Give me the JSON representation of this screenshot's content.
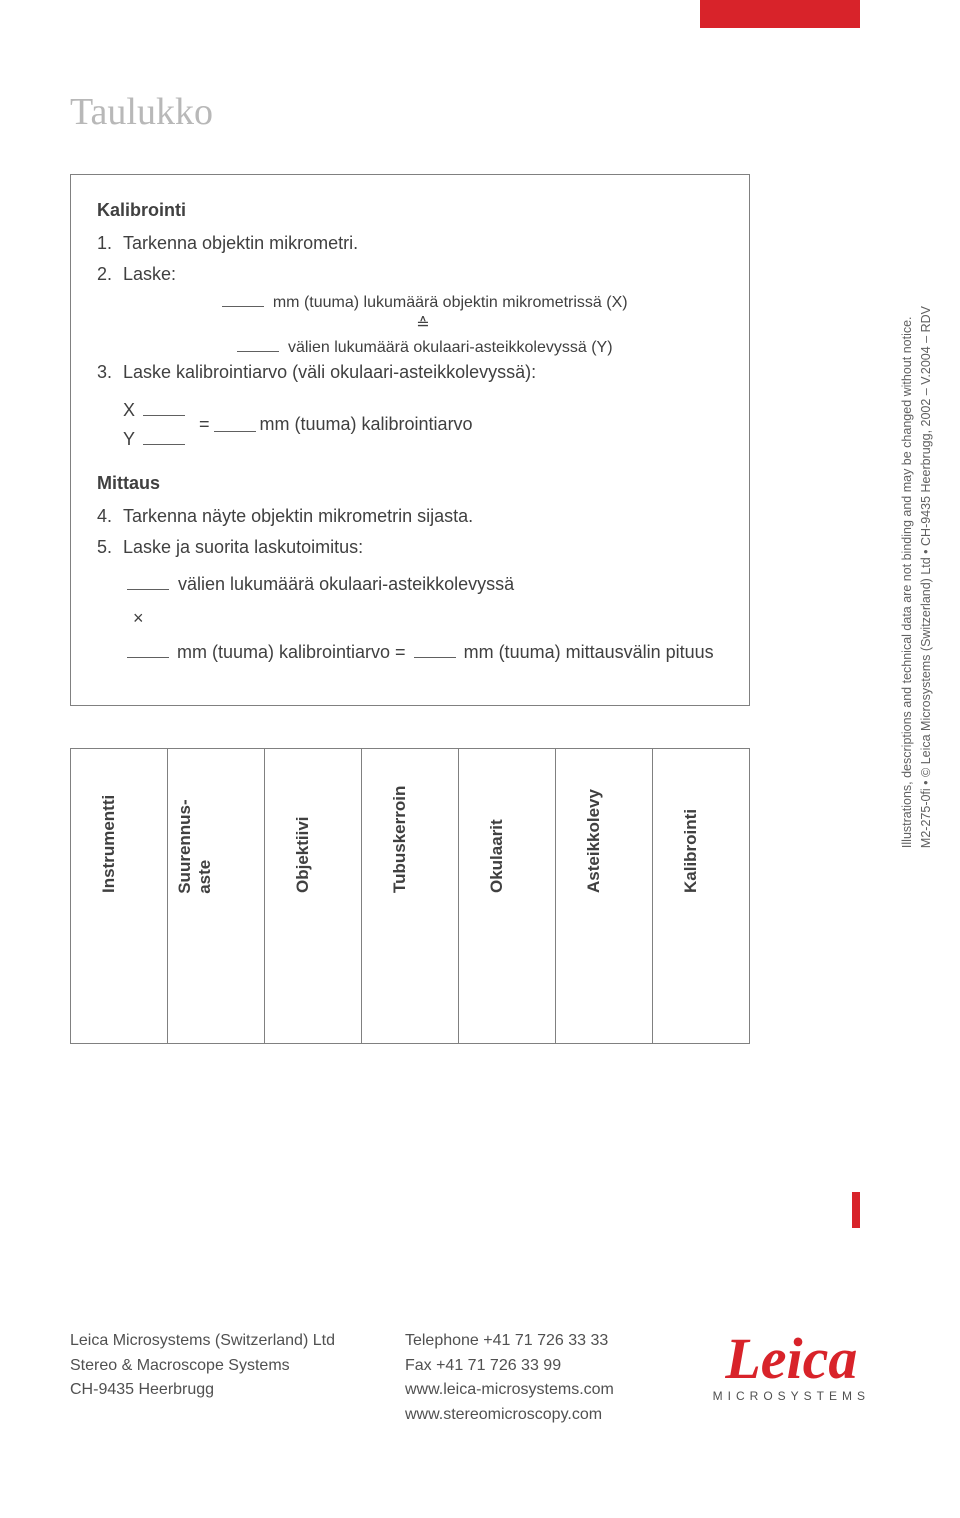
{
  "colors": {
    "accent_red": "#d8232a",
    "title_grey": "#b8b8b8",
    "text": "#404040",
    "border": "#808080",
    "background": "#ffffff",
    "side_text": "#606060"
  },
  "typography": {
    "body_family": "Arial, Helvetica, sans-serif",
    "title_family": "Georgia, serif",
    "logo_family": "Brush Script MT, cursive",
    "title_size_pt": 28,
    "body_size_pt": 13,
    "rot_label_size_pt": 12,
    "side_size_pt": 9
  },
  "page_title": "Taulukko",
  "calib": {
    "heading": "Kalibrointi",
    "step1_num": "1.",
    "step1_text": "Tarkenna objektin mikrometri.",
    "step2_num": "2.",
    "step2_text": "Laske:",
    "lineA": "mm (tuuma) lukumäärä objektin mikrometrissä (X)",
    "cong": "≙",
    "lineB": "välien lukumäärä okulaari-asteikkolevyssä (Y)",
    "step3_num": "3.",
    "step3_text": "Laske kalibrointiarvo (väli okulaari-asteikkolevyssä):",
    "frac_x": "X",
    "frac_y": "Y",
    "eq_sign": "=",
    "calib_unit": "mm (tuuma) kalibrointiarvo",
    "meas_heading": "Mittaus",
    "step4_num": "4.",
    "step4_text": "Tarkenna näyte objektin mikrometrin sijasta.",
    "step5_num": "5.",
    "step5_text": "Laske ja suorita laskutoimitus:",
    "mult_lineA": "välien lukumäärä okulaari-asteikkolevyssä",
    "mult_sign": "×",
    "mult_lineB_pre": "mm (tuuma) kalibrointiarvo =",
    "mult_result": "mm (tuuma) mittausvälin pituus"
  },
  "table_labels": [
    "Instrumentti",
    "Suurennus-\naste",
    "Objektiivi",
    "Tubuskerroin",
    "Okulaarit",
    "Asteikkolevy",
    "Kalibrointi"
  ],
  "side_notice": {
    "line1": "Illustrations, descriptions and technical data are not binding and may be changed without notice.",
    "line2": "M2-275-0fi • © Leica Microsystems (Switzerland) Ltd • CH-9435 Heerbrugg, 2002 – V.2004 – RDV"
  },
  "footer": {
    "col1": [
      "Leica Microsystems (Switzerland) Ltd",
      "Stereo & Macroscope Systems",
      "CH-9435 Heerbrugg"
    ],
    "col2": [
      "Telephone +41 71 726 33 33",
      "Fax +41 71 726 33 99",
      "www.leica-microsystems.com",
      "www.stereomicroscopy.com"
    ]
  },
  "logo": {
    "script": "Leica",
    "under": "MICROSYSTEMS"
  }
}
